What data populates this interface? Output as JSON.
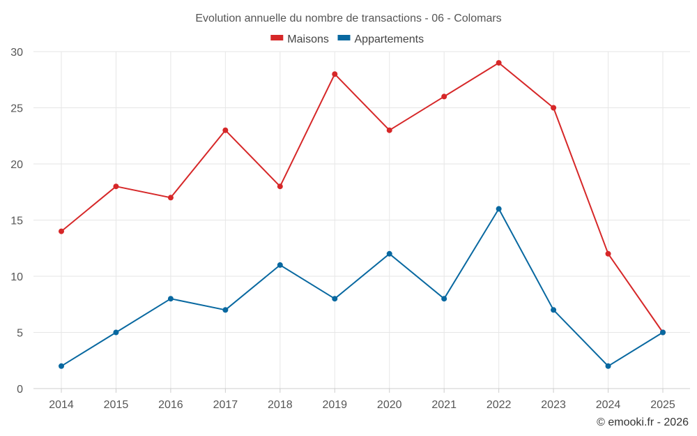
{
  "chart_data": {
    "type": "line",
    "title": "Evolution annuelle du nombre de transactions - 06 - Colomars",
    "xlabel": "",
    "ylabel": "",
    "categories": [
      "2014",
      "2015",
      "2016",
      "2017",
      "2018",
      "2019",
      "2020",
      "2021",
      "2022",
      "2023",
      "2024",
      "2025"
    ],
    "ylim": [
      0,
      30
    ],
    "yticks": [
      0,
      5,
      10,
      15,
      20,
      25,
      30
    ],
    "grid": true,
    "legend_position": "top-center",
    "series": [
      {
        "name": "Maisons",
        "color": "#d62728",
        "values": [
          14,
          18,
          17,
          23,
          18,
          28,
          23,
          26,
          29,
          25,
          12,
          5
        ]
      },
      {
        "name": "Appartements",
        "color": "#0868a0",
        "values": [
          2,
          5,
          8,
          7,
          11,
          8,
          12,
          8,
          16,
          7,
          2,
          5
        ]
      }
    ],
    "credit": "© emooki.fr - 2026"
  }
}
